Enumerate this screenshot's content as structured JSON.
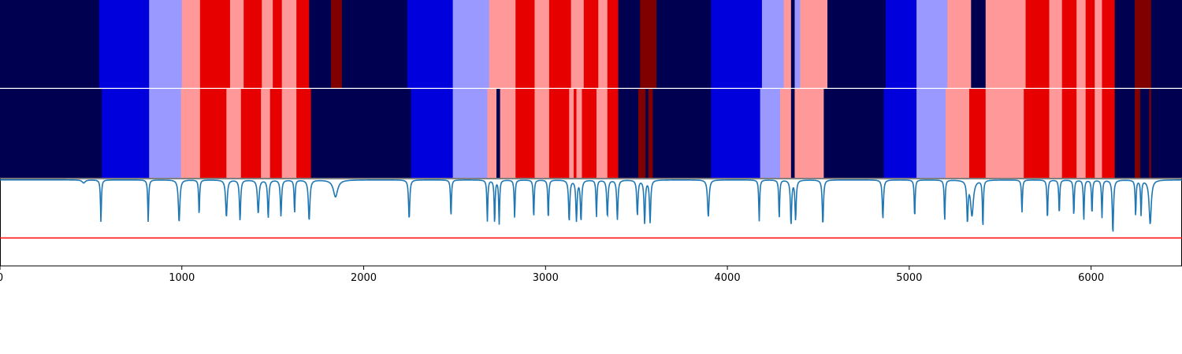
{
  "chart_data": {
    "type": "segmentation-timeline",
    "x_range": [
      0,
      6500
    ],
    "x_ticks": [
      {
        "value": 0,
        "label": "0"
      },
      {
        "value": 1000,
        "label": "1000"
      },
      {
        "value": 2000,
        "label": "2000"
      },
      {
        "value": 3000,
        "label": "3000"
      },
      {
        "value": 4000,
        "label": "4000"
      },
      {
        "value": 5000,
        "label": "5000"
      },
      {
        "value": 6000,
        "label": "6000"
      }
    ],
    "class_colors": [
      "#000050",
      "#0000dd",
      "#9999ff",
      "#ff9999",
      "#e60000",
      "#800000"
    ],
    "bands": [
      {
        "name": "top-segmentation",
        "segments": [
          [
            0,
            545,
            0
          ],
          [
            545,
            820,
            1
          ],
          [
            820,
            1000,
            2
          ],
          [
            1000,
            1100,
            3
          ],
          [
            1100,
            1265,
            4
          ],
          [
            1265,
            1340,
            3
          ],
          [
            1340,
            1440,
            4
          ],
          [
            1440,
            1500,
            3
          ],
          [
            1500,
            1550,
            4
          ],
          [
            1550,
            1630,
            3
          ],
          [
            1630,
            1700,
            4
          ],
          [
            1700,
            1820,
            0
          ],
          [
            1820,
            1880,
            5
          ],
          [
            1880,
            2240,
            0
          ],
          [
            2240,
            2490,
            1
          ],
          [
            2490,
            2690,
            2
          ],
          [
            2690,
            2835,
            3
          ],
          [
            2835,
            2940,
            4
          ],
          [
            2940,
            3020,
            3
          ],
          [
            3020,
            3140,
            4
          ],
          [
            3140,
            3210,
            3
          ],
          [
            3210,
            3290,
            4
          ],
          [
            3290,
            3340,
            3
          ],
          [
            3340,
            3400,
            4
          ],
          [
            3400,
            3520,
            0
          ],
          [
            3520,
            3610,
            5
          ],
          [
            3610,
            3910,
            0
          ],
          [
            3910,
            4190,
            1
          ],
          [
            4190,
            4310,
            2
          ],
          [
            4310,
            4350,
            3
          ],
          [
            4350,
            4370,
            0
          ],
          [
            4370,
            4400,
            2
          ],
          [
            4400,
            4550,
            3
          ],
          [
            4550,
            4870,
            0
          ],
          [
            4870,
            5040,
            1
          ],
          [
            5040,
            5210,
            2
          ],
          [
            5210,
            5340,
            3
          ],
          [
            5340,
            5420,
            0
          ],
          [
            5420,
            5640,
            3
          ],
          [
            5640,
            5770,
            4
          ],
          [
            5770,
            5840,
            3
          ],
          [
            5840,
            5920,
            4
          ],
          [
            5920,
            5970,
            3
          ],
          [
            5970,
            6020,
            4
          ],
          [
            6020,
            6060,
            3
          ],
          [
            6060,
            6130,
            4
          ],
          [
            6130,
            6240,
            0
          ],
          [
            6240,
            6330,
            5
          ],
          [
            6330,
            6500,
            0
          ]
        ]
      },
      {
        "name": "bottom-segmentation",
        "segments": [
          [
            0,
            560,
            0
          ],
          [
            560,
            820,
            1
          ],
          [
            820,
            995,
            2
          ],
          [
            995,
            1100,
            3
          ],
          [
            1100,
            1245,
            4
          ],
          [
            1245,
            1325,
            3
          ],
          [
            1325,
            1435,
            4
          ],
          [
            1435,
            1485,
            3
          ],
          [
            1485,
            1550,
            4
          ],
          [
            1550,
            1630,
            3
          ],
          [
            1630,
            1710,
            4
          ],
          [
            1710,
            2260,
            0
          ],
          [
            2260,
            2490,
            1
          ],
          [
            2490,
            2680,
            2
          ],
          [
            2680,
            2730,
            3
          ],
          [
            2730,
            2750,
            0
          ],
          [
            2750,
            2835,
            3
          ],
          [
            2835,
            2940,
            4
          ],
          [
            2940,
            3020,
            3
          ],
          [
            3020,
            3130,
            4
          ],
          [
            3130,
            3155,
            3
          ],
          [
            3155,
            3170,
            4
          ],
          [
            3170,
            3200,
            3
          ],
          [
            3200,
            3280,
            4
          ],
          [
            3280,
            3340,
            3
          ],
          [
            3340,
            3400,
            4
          ],
          [
            3400,
            3510,
            0
          ],
          [
            3510,
            3550,
            5
          ],
          [
            3550,
            3565,
            0
          ],
          [
            3565,
            3590,
            5
          ],
          [
            3590,
            3910,
            0
          ],
          [
            3910,
            4180,
            1
          ],
          [
            4180,
            4290,
            2
          ],
          [
            4290,
            4350,
            3
          ],
          [
            4350,
            4370,
            0
          ],
          [
            4370,
            4530,
            3
          ],
          [
            4530,
            4860,
            0
          ],
          [
            4860,
            5040,
            1
          ],
          [
            5040,
            5200,
            2
          ],
          [
            5200,
            5330,
            3
          ],
          [
            5330,
            5420,
            4
          ],
          [
            5420,
            5630,
            3
          ],
          [
            5630,
            5770,
            4
          ],
          [
            5770,
            5840,
            3
          ],
          [
            5840,
            5920,
            4
          ],
          [
            5920,
            5970,
            3
          ],
          [
            5970,
            6020,
            4
          ],
          [
            6020,
            6060,
            3
          ],
          [
            6060,
            6130,
            4
          ],
          [
            6130,
            6240,
            0
          ],
          [
            6240,
            6270,
            5
          ],
          [
            6270,
            6320,
            0
          ],
          [
            6320,
            6330,
            5
          ],
          [
            6330,
            6500,
            0
          ]
        ]
      }
    ],
    "signal": {
      "color": "#1f77b4",
      "y_range": [
        0,
        1
      ],
      "baseline": 0.985,
      "dips": [
        [
          460,
          0.95,
          10
        ],
        [
          555,
          0.5,
          3
        ],
        [
          815,
          0.5,
          3
        ],
        [
          985,
          0.5,
          5
        ],
        [
          1095,
          0.58,
          3
        ],
        [
          1245,
          0.56,
          5
        ],
        [
          1320,
          0.52,
          4
        ],
        [
          1420,
          0.6,
          5
        ],
        [
          1475,
          0.55,
          4
        ],
        [
          1545,
          0.57,
          4
        ],
        [
          1620,
          0.6,
          3
        ],
        [
          1700,
          0.52,
          5
        ],
        [
          1845,
          0.79,
          14
        ],
        [
          2250,
          0.53,
          4
        ],
        [
          2480,
          0.56,
          3
        ],
        [
          2680,
          0.51,
          3
        ],
        [
          2720,
          0.48,
          3
        ],
        [
          2745,
          0.48,
          3
        ],
        [
          2830,
          0.55,
          3
        ],
        [
          2935,
          0.55,
          3
        ],
        [
          3015,
          0.53,
          3
        ],
        [
          3130,
          0.51,
          4
        ],
        [
          3170,
          0.52,
          4
        ],
        [
          3195,
          0.52,
          4
        ],
        [
          3280,
          0.56,
          3
        ],
        [
          3340,
          0.56,
          4
        ],
        [
          3395,
          0.53,
          4
        ],
        [
          3505,
          0.58,
          4
        ],
        [
          3545,
          0.49,
          4
        ],
        [
          3575,
          0.5,
          4
        ],
        [
          3895,
          0.56,
          5
        ],
        [
          4175,
          0.51,
          3
        ],
        [
          4285,
          0.54,
          3
        ],
        [
          4350,
          0.48,
          4
        ],
        [
          4375,
          0.53,
          4
        ],
        [
          4525,
          0.47,
          4
        ],
        [
          4855,
          0.54,
          4
        ],
        [
          5030,
          0.55,
          3
        ],
        [
          5195,
          0.51,
          3
        ],
        [
          5320,
          0.53,
          4
        ],
        [
          5345,
          0.58,
          9
        ],
        [
          5405,
          0.44,
          3
        ],
        [
          5620,
          0.61,
          3
        ],
        [
          5760,
          0.53,
          3
        ],
        [
          5825,
          0.59,
          3
        ],
        [
          5905,
          0.57,
          3
        ],
        [
          5960,
          0.52,
          3
        ],
        [
          6005,
          0.59,
          3
        ],
        [
          6060,
          0.55,
          3
        ],
        [
          6120,
          0.37,
          4
        ],
        [
          6245,
          0.57,
          3
        ],
        [
          6275,
          0.58,
          3
        ],
        [
          6325,
          0.48,
          7
        ]
      ]
    },
    "threshold": {
      "value": 0.32,
      "color": "#ff0000"
    }
  }
}
